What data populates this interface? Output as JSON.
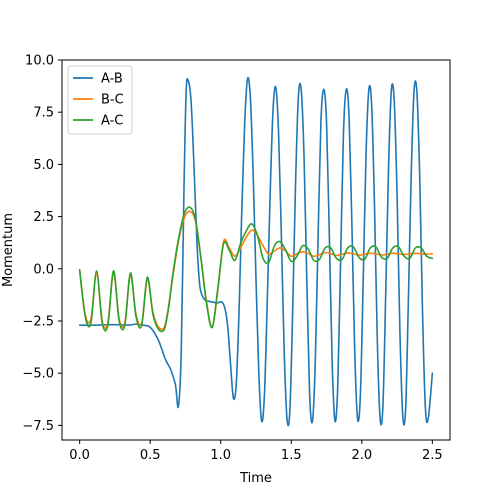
{
  "chart_data": {
    "type": "line",
    "title": "",
    "xlabel": "Time",
    "ylabel": "Momentum",
    "xlim": [
      -0.125,
      2.625
    ],
    "ylim": [
      -8.2,
      10.0
    ],
    "xticks": [
      {
        "value": 0.0,
        "label": "0.0"
      },
      {
        "value": 0.5,
        "label": "0.5"
      },
      {
        "value": 1.0,
        "label": "1.0"
      },
      {
        "value": 1.5,
        "label": "1.5"
      },
      {
        "value": 2.0,
        "label": "2.0"
      },
      {
        "value": 2.5,
        "label": "2.5"
      }
    ],
    "yticks": [
      {
        "value": -7.5,
        "label": "−7.5"
      },
      {
        "value": -5.0,
        "label": "−5.0"
      },
      {
        "value": -2.5,
        "label": "−2.5"
      },
      {
        "value": 0.0,
        "label": "0.0"
      },
      {
        "value": 2.5,
        "label": "2.5"
      },
      {
        "value": 5.0,
        "label": "5.0"
      },
      {
        "value": 7.5,
        "label": "7.5"
      },
      {
        "value": 10.0,
        "label": "10.0"
      }
    ],
    "legend_position": "top-left",
    "grid": false,
    "series": [
      {
        "name": "A-B",
        "color": "#1f77b4",
        "x": [
          0.0,
          0.1,
          0.2,
          0.3,
          0.35,
          0.4,
          0.45,
          0.5,
          0.55,
          0.58,
          0.6,
          0.62,
          0.65,
          0.68,
          0.7,
          0.72,
          0.74,
          0.755,
          0.77,
          0.79,
          0.81,
          0.83,
          0.85,
          0.87,
          0.89,
          0.91,
          0.93,
          0.95,
          0.97,
          0.99,
          1.01,
          1.03,
          1.05,
          1.07,
          1.09,
          1.11,
          1.13,
          1.15,
          1.17,
          1.19,
          1.21,
          1.23,
          1.25,
          1.27,
          1.29,
          1.31,
          1.33,
          1.35,
          1.37,
          1.39,
          1.41,
          1.43,
          1.45,
          1.47,
          1.49,
          1.51,
          1.53,
          1.55,
          1.57,
          1.59,
          1.61,
          1.63,
          1.65,
          1.67,
          1.69,
          1.71,
          1.73,
          1.75,
          1.77,
          1.79,
          1.81,
          1.83,
          1.85,
          1.87,
          1.89,
          1.91,
          1.93,
          1.95,
          1.97,
          1.99,
          2.01,
          2.03,
          2.05,
          2.07,
          2.09,
          2.11,
          2.13,
          2.15,
          2.17,
          2.19,
          2.21,
          2.23,
          2.25,
          2.27,
          2.29,
          2.31,
          2.33,
          2.35,
          2.37,
          2.39,
          2.41,
          2.43,
          2.45,
          2.47,
          2.5
        ],
        "y": [
          -2.7,
          -2.7,
          -2.68,
          -2.68,
          -2.7,
          -2.65,
          -2.7,
          -2.8,
          -3.3,
          -3.8,
          -4.2,
          -4.5,
          -4.9,
          -5.6,
          -6.6,
          -4.0,
          4.0,
          8.5,
          9.0,
          8.0,
          5.0,
          1.5,
          -0.7,
          -1.3,
          -1.5,
          -1.55,
          -1.58,
          -1.6,
          -1.65,
          -1.6,
          -1.6,
          -1.9,
          -2.8,
          -4.6,
          -6.2,
          -5.5,
          -2.0,
          3.0,
          7.0,
          9.1,
          8.2,
          4.5,
          -0.5,
          -5.0,
          -7.3,
          -6.0,
          -1.5,
          3.5,
          7.5,
          8.7,
          6.5,
          1.5,
          -4.0,
          -7.2,
          -6.8,
          -2.0,
          4.0,
          8.2,
          8.6,
          5.5,
          -0.5,
          -6.0,
          -7.3,
          -4.5,
          1.5,
          7.0,
          8.6,
          7.0,
          1.5,
          -4.5,
          -7.3,
          -5.5,
          0.5,
          6.5,
          8.6,
          7.2,
          2.0,
          -4.0,
          -7.2,
          -6.0,
          -0.5,
          5.5,
          8.6,
          7.8,
          3.0,
          -3.5,
          -7.2,
          -6.5,
          -1.0,
          5.0,
          8.6,
          8.0,
          3.5,
          -3.0,
          -7.0,
          -6.8,
          -1.5,
          4.5,
          8.5,
          8.5,
          4.5,
          -2.0,
          -6.6,
          -7.2,
          -5.0
        ]
      },
      {
        "name": "B-C",
        "color": "#ff7f0e",
        "x": [
          0.0,
          0.04,
          0.08,
          0.12,
          0.16,
          0.2,
          0.24,
          0.28,
          0.32,
          0.36,
          0.4,
          0.44,
          0.48,
          0.52,
          0.56,
          0.6,
          0.63,
          0.66,
          0.7,
          0.74,
          0.78,
          0.82,
          0.86,
          0.9,
          0.94,
          0.98,
          1.02,
          1.06,
          1.1,
          1.14,
          1.18,
          1.22,
          1.26,
          1.3,
          1.34,
          1.38,
          1.42,
          1.46,
          1.5,
          1.54,
          1.58,
          1.62,
          1.66,
          1.7,
          1.74,
          1.78,
          1.82,
          1.86,
          1.9,
          1.94,
          1.98,
          2.02,
          2.06,
          2.1,
          2.14,
          2.18,
          2.22,
          2.26,
          2.3,
          2.34,
          2.38,
          2.42,
          2.46,
          2.5
        ],
        "y": [
          -0.05,
          -2.2,
          -2.4,
          -0.2,
          -2.5,
          -2.6,
          -0.2,
          -2.4,
          -2.6,
          -0.3,
          -2.2,
          -2.6,
          -0.5,
          -2.1,
          -2.8,
          -2.8,
          -1.8,
          -0.4,
          1.3,
          2.4,
          2.75,
          2.3,
          0.5,
          -1.6,
          -2.8,
          -1.0,
          1.3,
          1.0,
          0.6,
          1.0,
          1.5,
          1.85,
          1.6,
          1.1,
          0.7,
          0.85,
          1.0,
          0.85,
          0.6,
          0.72,
          0.82,
          0.74,
          0.6,
          0.68,
          0.78,
          0.72,
          0.64,
          0.7,
          0.76,
          0.72,
          0.65,
          0.7,
          0.74,
          0.72,
          0.66,
          0.7,
          0.74,
          0.72,
          0.68,
          0.71,
          0.74,
          0.72,
          0.7,
          0.72
        ]
      },
      {
        "name": "A-C",
        "color": "#2ca02c",
        "x": [
          0.0,
          0.04,
          0.08,
          0.12,
          0.16,
          0.2,
          0.24,
          0.28,
          0.32,
          0.36,
          0.4,
          0.44,
          0.48,
          0.52,
          0.56,
          0.6,
          0.63,
          0.66,
          0.7,
          0.74,
          0.78,
          0.82,
          0.86,
          0.9,
          0.94,
          0.98,
          1.02,
          1.06,
          1.1,
          1.14,
          1.18,
          1.22,
          1.26,
          1.3,
          1.34,
          1.38,
          1.42,
          1.46,
          1.5,
          1.54,
          1.58,
          1.62,
          1.66,
          1.7,
          1.74,
          1.78,
          1.82,
          1.86,
          1.9,
          1.94,
          1.98,
          2.02,
          2.06,
          2.1,
          2.14,
          2.18,
          2.22,
          2.26,
          2.3,
          2.34,
          2.38,
          2.42,
          2.46,
          2.5
        ],
        "y": [
          -0.05,
          -2.3,
          -2.6,
          -0.1,
          -2.6,
          -2.7,
          -0.1,
          -2.5,
          -2.7,
          -0.2,
          -2.3,
          -2.7,
          -0.4,
          -2.2,
          -2.9,
          -2.9,
          -1.9,
          -0.3,
          1.4,
          2.6,
          2.95,
          2.4,
          0.5,
          -1.7,
          -2.8,
          -0.9,
          1.2,
          0.9,
          0.4,
          1.2,
          1.8,
          2.15,
          1.6,
          0.5,
          0.3,
          1.1,
          1.3,
          0.9,
          0.35,
          0.6,
          1.1,
          0.95,
          0.4,
          0.45,
          1.0,
          1.0,
          0.5,
          0.45,
          1.0,
          1.05,
          0.55,
          0.45,
          1.0,
          1.05,
          0.55,
          0.5,
          1.0,
          1.05,
          0.6,
          0.5,
          1.0,
          1.0,
          0.6,
          0.5
        ]
      }
    ]
  }
}
